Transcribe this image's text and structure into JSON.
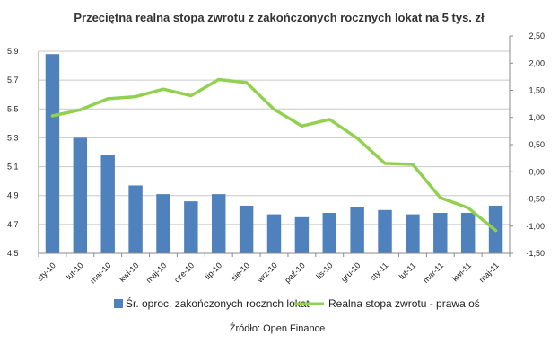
{
  "chart_data": {
    "type": "bar",
    "title": "Przeciętna realna stopa zwrotu z zakończonych rocznych lokat na 5 tys. zł",
    "categories": [
      "sty-10",
      "lut-10",
      "mar-10",
      "kwi-10",
      "maj-10",
      "cze-10",
      "lip-10",
      "sie-10",
      "wrz-10",
      "paź-10",
      "lis-10",
      "gru-10",
      "sty-11",
      "lut-11",
      "mar-11",
      "kwi-11",
      "maj-11"
    ],
    "series": [
      {
        "name": "Śr. oproc. zakończonych rocznch lokat",
        "type": "bar",
        "axis": "left",
        "color": "#4F81BD",
        "values": [
          5.88,
          5.3,
          5.18,
          4.97,
          4.91,
          4.86,
          4.91,
          4.83,
          4.77,
          4.75,
          4.78,
          4.82,
          4.8,
          4.77,
          4.78,
          4.78,
          4.83
        ]
      },
      {
        "name": "Realna stopa zwrotu - prawa oś",
        "type": "line",
        "axis": "right",
        "color": "#92D050",
        "values": [
          1.22,
          1.34,
          1.56,
          1.6,
          1.75,
          1.62,
          1.94,
          1.88,
          1.35,
          1.02,
          1.15,
          0.78,
          0.28,
          0.26,
          -0.4,
          -0.6,
          -1.05
        ]
      }
    ],
    "y_left": {
      "min": 4.5,
      "max": 5.9,
      "step": 0.2,
      "tick_labels": [
        "5,9",
        "5,7",
        "5,5",
        "5,3",
        "5,1",
        "4,9",
        "4,7",
        "4,5"
      ]
    },
    "y_right": {
      "min": -1.5,
      "max": 2.5,
      "step": 0.5,
      "tick_labels": [
        "2,50",
        "2,00",
        "1,50",
        "1,00",
        "0,50",
        "0,00",
        "-0,50",
        "-1,00",
        "-1,50"
      ]
    },
    "grid": true,
    "legend_position": "bottom",
    "source": "Źródło: Open Finance"
  }
}
